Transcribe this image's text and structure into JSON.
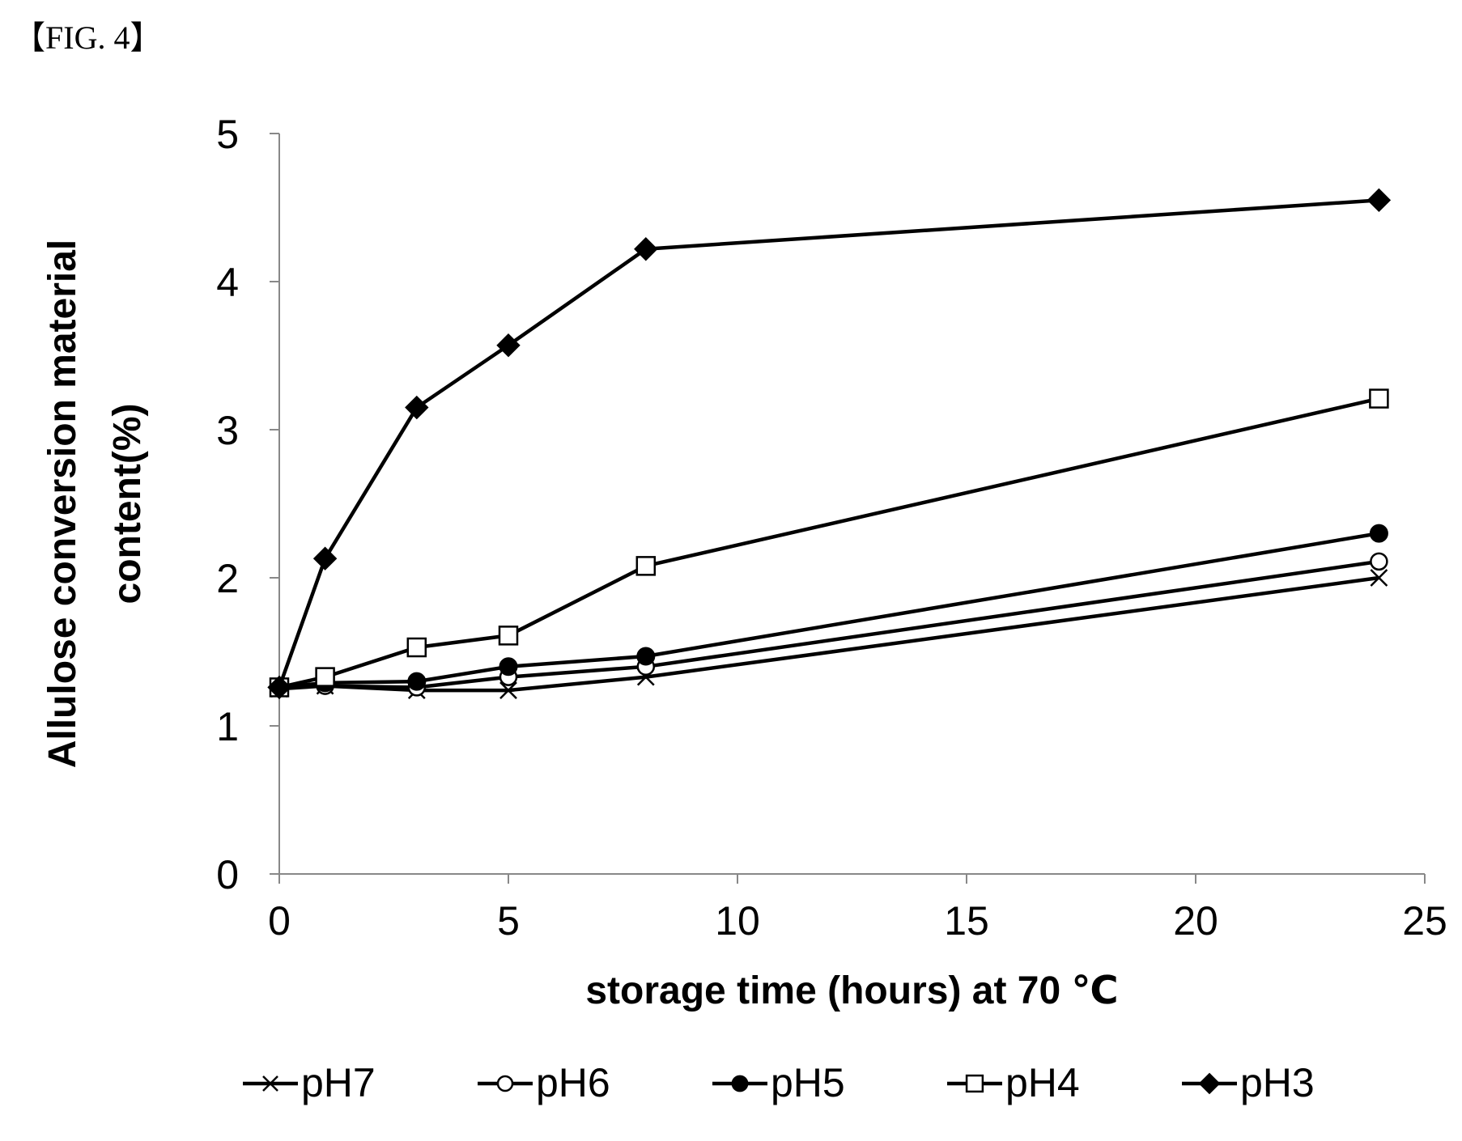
{
  "figure_label": "【FIG. 4】",
  "chart_data": {
    "type": "line",
    "title": "",
    "xlabel": "storage time (hours) at 70 ℃",
    "ylabel_lines": [
      "Allulose conversion material",
      "content(%)"
    ],
    "xlim": [
      0,
      25
    ],
    "ylim": [
      0,
      5
    ],
    "xticks": [
      0,
      5,
      10,
      15,
      20,
      25
    ],
    "yticks": [
      0,
      1,
      2,
      3,
      4,
      5
    ],
    "grid": false,
    "legend_position": "bottom",
    "x": [
      0,
      1,
      3,
      5,
      8,
      24
    ],
    "series": [
      {
        "name": "pH7",
        "marker": "x",
        "values": [
          1.25,
          1.27,
          1.24,
          1.24,
          1.33,
          2.0
        ]
      },
      {
        "name": "pH6",
        "marker": "circle-open",
        "values": [
          1.26,
          1.27,
          1.26,
          1.33,
          1.4,
          2.11
        ]
      },
      {
        "name": "pH5",
        "marker": "circle-filled",
        "values": [
          1.26,
          1.29,
          1.3,
          1.4,
          1.47,
          2.3
        ]
      },
      {
        "name": "pH4",
        "marker": "square-open",
        "values": [
          1.26,
          1.33,
          1.53,
          1.61,
          2.08,
          3.21
        ]
      },
      {
        "name": "pH3",
        "marker": "diamond-filled",
        "values": [
          1.26,
          2.13,
          3.15,
          3.57,
          4.22,
          4.55
        ]
      }
    ]
  }
}
